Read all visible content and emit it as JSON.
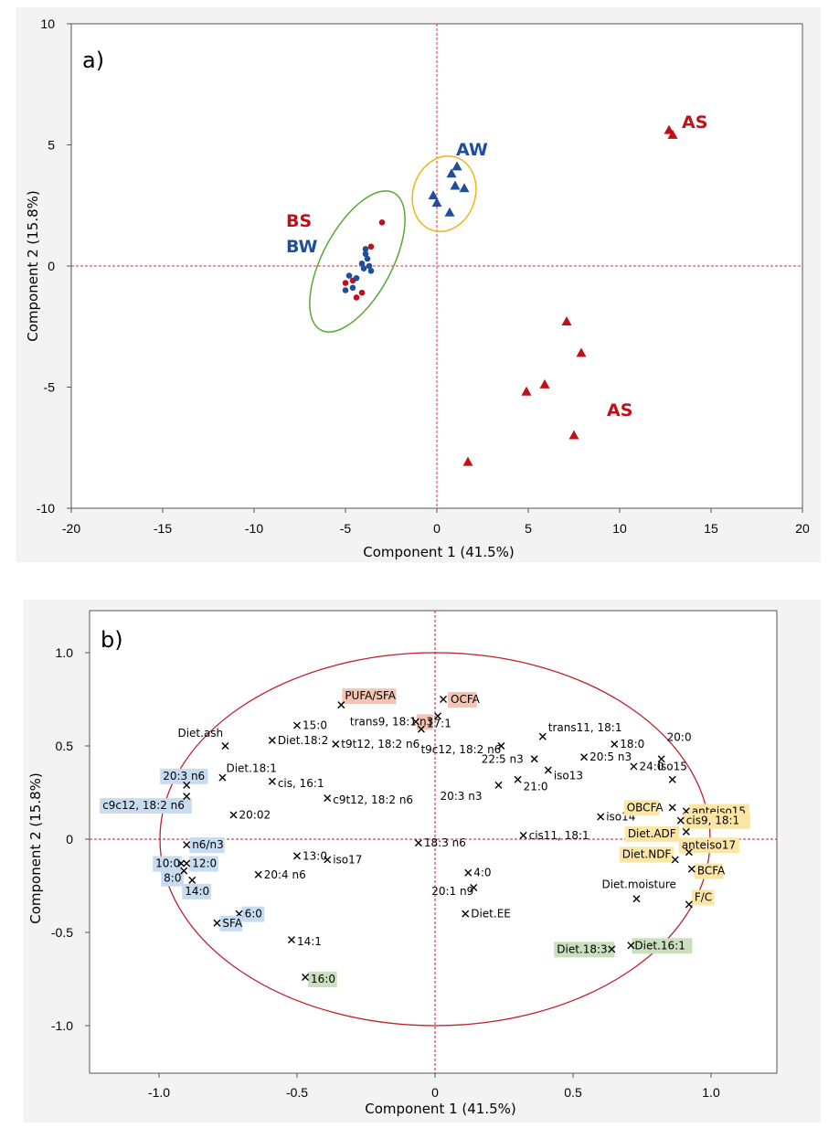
{
  "chart_data": [
    {
      "type": "scatter",
      "panel_label": "a)",
      "xlabel": "Component 1 (41.5%)",
      "ylabel": "Component 2 (15.8%)",
      "xlim": [
        -20,
        20
      ],
      "ylim": [
        -10,
        10
      ],
      "xticks": [
        "-20",
        "-15",
        "-10",
        "-5",
        "0",
        "5",
        "10",
        "15",
        "20"
      ],
      "yticks": [
        "10",
        "5",
        "0",
        "-5",
        "-10"
      ],
      "groups": [
        {
          "name": "AS",
          "color": "#c0101a"
        },
        {
          "name": "AS",
          "color": "#c0101a"
        },
        {
          "name": "AW",
          "color": "#1f4e9c"
        },
        {
          "name": "BS",
          "color": "#c0101a"
        },
        {
          "name": "BW",
          "color": "#1f4e9c"
        }
      ],
      "series": [
        {
          "name": "AS",
          "marker": "triangle",
          "color": "#c0101a",
          "x": [
            12.7,
            12.9,
            7.1,
            7.9,
            5.9,
            4.9,
            7.5,
            1.7
          ],
          "y": [
            5.6,
            5.4,
            -2.3,
            -3.6,
            -4.9,
            -5.2,
            -7.0,
            -8.1
          ]
        },
        {
          "name": "AW",
          "marker": "triangle",
          "color": "#1f4e9c",
          "x": [
            0.8,
            1.1,
            1.0,
            1.5,
            -0.2,
            0.0,
            0.7
          ],
          "y": [
            3.8,
            4.1,
            3.3,
            3.2,
            2.9,
            2.6,
            2.2
          ]
        },
        {
          "name": "BS",
          "marker": "circle",
          "color": "#c0101a",
          "x": [
            -3.0,
            -3.6,
            -5.0,
            -4.6,
            -4.1,
            -4.4
          ],
          "y": [
            1.8,
            0.8,
            -0.7,
            -0.6,
            -1.1,
            -1.3
          ]
        },
        {
          "name": "BW",
          "marker": "circle",
          "color": "#1f4e9c",
          "x": [
            -3.9,
            -3.9,
            -3.8,
            -4.1,
            -3.7,
            -4.0,
            -3.6,
            -4.8,
            -4.4,
            -5.0,
            -4.6
          ],
          "y": [
            0.7,
            0.5,
            0.3,
            0.1,
            0.0,
            -0.1,
            -0.2,
            -0.4,
            -0.5,
            -1.0,
            -0.9
          ]
        }
      ]
    },
    {
      "type": "scatter",
      "panel_label": "b)",
      "xlabel": "Component 1 (41.5%)",
      "ylabel": "Component 2 (15.8%)",
      "xlim": [
        -1.25,
        1.25
      ],
      "ylim": [
        -1.2,
        1.2
      ],
      "xticks": [
        "-1.0",
        "-0.5",
        "0",
        "0.5",
        "1.0"
      ],
      "yticks": [
        "1.0",
        "0.5",
        "0",
        "-0.5",
        "-1.0"
      ],
      "colors": {
        "salmon": "#f6c4b0",
        "blue": "#c7dcf0",
        "yellow": "#fbe6a6",
        "green": "#c9dfbd",
        "circle": "#c0202a",
        "ellipse_a_green": "#5aa832",
        "ellipse_a_gold": "#f0b418"
      },
      "loadings": [
        {
          "label": "PUFA/SFA",
          "x": -0.34,
          "y": 0.72,
          "hl": "salmon"
        },
        {
          "label": "n3",
          "x": 0.01,
          "y": 0.66,
          "hl": "salmon"
        },
        {
          "label": "OCFA",
          "x": 0.03,
          "y": 0.75,
          "hl": "salmon"
        },
        {
          "label": "trans9, 18:1",
          "x": -0.07,
          "y": 0.63
        },
        {
          "label": "17:1",
          "x": -0.05,
          "y": 0.59
        },
        {
          "label": "t9c12, 18:2 n6",
          "x": 0.24,
          "y": 0.5
        },
        {
          "label": "15:0",
          "x": -0.5,
          "y": 0.61
        },
        {
          "label": "t9t12, 18:2 n6",
          "x": -0.36,
          "y": 0.51
        },
        {
          "label": "Diet.18:2",
          "x": -0.59,
          "y": 0.53
        },
        {
          "label": "Diet.ash",
          "x": -0.76,
          "y": 0.5
        },
        {
          "label": "Diet.18:1",
          "x": -0.77,
          "y": 0.33
        },
        {
          "label": "20:3 n6",
          "x": -0.9,
          "y": 0.29,
          "hl": "blue"
        },
        {
          "label": "cis, 16:1",
          "x": -0.59,
          "y": 0.31
        },
        {
          "label": "c9c12, 18:2 n6",
          "x": -0.9,
          "y": 0.23,
          "hl": "blue"
        },
        {
          "label": "c9t12, 18:2 n6",
          "x": -0.39,
          "y": 0.22
        },
        {
          "label": "20:02",
          "x": -0.73,
          "y": 0.13
        },
        {
          "label": "n6/n3",
          "x": -0.9,
          "y": -0.03,
          "hl": "blue"
        },
        {
          "label": "10:0",
          "x": -0.92,
          "y": -0.13,
          "hl": "blue"
        },
        {
          "label": "12:0",
          "x": -0.9,
          "y": -0.13,
          "hl": "blue"
        },
        {
          "label": "8:0",
          "x": -0.91,
          "y": -0.17,
          "hl": "blue"
        },
        {
          "label": "14:0",
          "x": -0.88,
          "y": -0.22,
          "hl": "blue"
        },
        {
          "label": "13:0",
          "x": -0.5,
          "y": -0.09
        },
        {
          "label": "iso17",
          "x": -0.39,
          "y": -0.11
        },
        {
          "label": "20:4 n6",
          "x": -0.64,
          "y": -0.19
        },
        {
          "label": "6:0",
          "x": -0.71,
          "y": -0.4,
          "hl": "blue"
        },
        {
          "label": "SFA",
          "x": -0.79,
          "y": -0.45,
          "hl": "blue"
        },
        {
          "label": "14:1",
          "x": -0.52,
          "y": -0.54
        },
        {
          "label": "16:0",
          "x": -0.47,
          "y": -0.74,
          "hl": "green"
        },
        {
          "label": "18:3 n6",
          "x": -0.06,
          "y": -0.02
        },
        {
          "label": "4:0",
          "x": 0.12,
          "y": -0.18
        },
        {
          "label": "20:1 n9",
          "x": 0.14,
          "y": -0.26
        },
        {
          "label": "Diet.EE",
          "x": 0.11,
          "y": -0.4
        },
        {
          "label": "trans11, 18:1",
          "x": 0.39,
          "y": 0.55
        },
        {
          "label": "22:5 n3",
          "x": 0.36,
          "y": 0.43
        },
        {
          "label": "21:0",
          "x": 0.3,
          "y": 0.32
        },
        {
          "label": "iso13",
          "x": 0.41,
          "y": 0.37
        },
        {
          "label": "20:3 n3",
          "x": 0.23,
          "y": 0.29
        },
        {
          "label": "18:0",
          "x": 0.65,
          "y": 0.51
        },
        {
          "label": "20:5 n3",
          "x": 0.54,
          "y": 0.44
        },
        {
          "label": "24:0",
          "x": 0.72,
          "y": 0.39
        },
        {
          "label": "20:0",
          "x": 0.82,
          "y": 0.43
        },
        {
          "label": "iso15",
          "x": 0.86,
          "y": 0.32
        },
        {
          "label": "iso14",
          "x": 0.6,
          "y": 0.12
        },
        {
          "label": "cis11, 18:1",
          "x": 0.32,
          "y": 0.02
        },
        {
          "label": "OBCFA",
          "x": 0.86,
          "y": 0.17,
          "hl": "yellow"
        },
        {
          "label": "anteiso15",
          "x": 0.91,
          "y": 0.15,
          "hl": "yellow"
        },
        {
          "label": "cis9, 18:1",
          "x": 0.89,
          "y": 0.1,
          "hl": "yellow"
        },
        {
          "label": "Diet.ADF",
          "x": 0.91,
          "y": 0.04,
          "hl": "yellow"
        },
        {
          "label": "Diet.NDF",
          "x": 0.87,
          "y": -0.11,
          "hl": "yellow"
        },
        {
          "label": "anteiso17",
          "x": 0.92,
          "y": -0.07,
          "hl": "yellow"
        },
        {
          "label": "BCFA",
          "x": 0.93,
          "y": -0.16,
          "hl": "yellow"
        },
        {
          "label": "Diet.moisture",
          "x": 0.73,
          "y": -0.32
        },
        {
          "label": "F/C",
          "x": 0.92,
          "y": -0.35,
          "hl": "yellow"
        },
        {
          "label": "Diet.18:3",
          "x": 0.64,
          "y": -0.59,
          "hl": "green"
        },
        {
          "label": "Diet.16:1",
          "x": 0.71,
          "y": -0.57,
          "hl": "green"
        }
      ]
    }
  ]
}
